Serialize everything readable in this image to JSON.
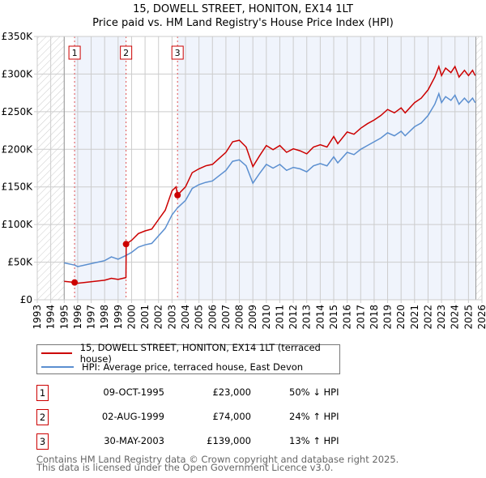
{
  "chart_data": {
    "type": "line",
    "title": "15, DOWELL STREET, HONITON, EX14 1LT",
    "subtitle": "Price paid vs. HM Land Registry's House Price Index (HPI)",
    "xlim": [
      1993,
      2026
    ],
    "ylim": [
      0,
      350000
    ],
    "x_ticks": [
      "1993",
      "1994",
      "1995",
      "1996",
      "1997",
      "1998",
      "1999",
      "2000",
      "2001",
      "2002",
      "2003",
      "2004",
      "2005",
      "2006",
      "2007",
      "2008",
      "2009",
      "2010",
      "2011",
      "2012",
      "2013",
      "2014",
      "2015",
      "2016",
      "2017",
      "2018",
      "2019",
      "2020",
      "2021",
      "2022",
      "2023",
      "2024",
      "2025",
      "2026"
    ],
    "y_ticks": [
      {
        "v": 0,
        "label": "£0"
      },
      {
        "v": 50000,
        "label": "£50K"
      },
      {
        "v": 100000,
        "label": "£100K"
      },
      {
        "v": 150000,
        "label": "£150K"
      },
      {
        "v": 200000,
        "label": "£200K"
      },
      {
        "v": 250000,
        "label": "£250K"
      },
      {
        "v": 300000,
        "label": "£300K"
      },
      {
        "v": 350000,
        "label": "£350K"
      }
    ],
    "grid": true,
    "data_start": 1995,
    "data_end": 2025.55,
    "series": [
      {
        "name": "15, DOWELL STREET, HONITON, EX14 1LT (terraced house)",
        "color": "#cc0000",
        "x": [
          1995,
          1995.8,
          1996,
          1997,
          1998,
          1998.5,
          1999,
          1999.58,
          1999.6,
          2000,
          2000.5,
          2001,
          2001.5,
          2002,
          2002.5,
          2003,
          2003.3,
          2003.4,
          2004,
          2004.5,
          2005,
          2005.5,
          2006,
          2006.5,
          2007,
          2007.5,
          2008,
          2008.5,
          2009,
          2009.5,
          2010,
          2010.5,
          2011,
          2011.5,
          2012,
          2012.5,
          2013,
          2013.5,
          2014,
          2014.5,
          2015,
          2015.3,
          2016,
          2016.5,
          2017,
          2017.5,
          2018,
          2018.5,
          2019,
          2019.5,
          2020,
          2020.3,
          2021,
          2021.5,
          2022,
          2022.5,
          2022.8,
          2023,
          2023.3,
          2023.7,
          2024,
          2024.3,
          2024.7,
          2025,
          2025.3,
          2025.5
        ],
        "y": [
          24.5,
          23,
          22,
          24,
          26,
          28.5,
          27,
          29.5,
          74,
          79,
          88,
          91.5,
          94,
          106.6,
          119,
          145,
          150,
          139,
          150,
          169,
          174,
          178,
          180,
          188,
          196,
          210,
          212,
          203,
          177,
          191.5,
          205,
          199.5,
          205,
          196,
          200.6,
          198,
          194,
          203,
          206,
          203,
          217,
          207.5,
          223,
          220,
          228,
          234,
          239,
          245,
          253,
          248.5,
          255,
          248.5,
          262,
          268,
          279,
          296,
          310,
          298,
          308,
          302,
          310,
          296,
          305,
          298,
          305,
          298
        ]
      },
      {
        "name": "HPI: Average price, terraced house, East Devon",
        "color": "#5b8fd0",
        "x": [
          1995,
          1995.8,
          1996,
          1997,
          1998,
          1998.5,
          1999,
          1999.6,
          2000,
          2000.5,
          2001,
          2001.5,
          2002,
          2002.5,
          2003,
          2003.4,
          2004,
          2004.5,
          2005,
          2005.5,
          2006,
          2006.5,
          2007,
          2007.5,
          2008,
          2008.5,
          2009,
          2009.5,
          2010,
          2010.5,
          2011,
          2011.5,
          2012,
          2012.5,
          2013,
          2013.5,
          2014,
          2014.5,
          2015,
          2015.3,
          2016,
          2016.5,
          2017,
          2017.5,
          2018,
          2018.5,
          2019,
          2019.5,
          2020,
          2020.3,
          2021,
          2021.5,
          2022,
          2022.5,
          2022.8,
          2023,
          2023.3,
          2023.7,
          2024,
          2024.3,
          2024.7,
          2025,
          2025.3,
          2025.5
        ],
        "y": [
          49,
          46,
          44,
          48,
          52,
          57,
          54,
          59,
          63,
          70,
          73,
          75,
          85,
          95,
          113,
          122,
          132,
          148,
          153,
          156,
          158,
          165,
          172,
          184,
          186,
          178,
          155,
          168,
          180,
          175,
          180,
          172,
          176,
          174,
          170,
          178,
          181,
          178,
          190,
          182,
          196,
          193,
          200,
          205,
          210,
          215,
          222,
          218,
          224,
          218,
          230,
          235,
          245,
          260,
          274,
          262,
          270,
          265,
          272,
          260,
          268,
          262,
          268,
          262
        ]
      }
    ],
    "y_units_note": "series y values in thousands of GBP",
    "sales": [
      {
        "label": "1",
        "x": 1995.77,
        "price": 23000,
        "date": "09-OCT-1995",
        "price_text": "£23,000",
        "hpi_text": "50% ↓ HPI"
      },
      {
        "label": "2",
        "x": 1999.59,
        "price": 74000,
        "date": "02-AUG-1999",
        "price_text": "£74,000",
        "hpi_text": "24% ↑ HPI"
      },
      {
        "label": "3",
        "x": 2003.41,
        "price": 139000,
        "date": "30-MAY-2003",
        "price_text": "£139,000",
        "hpi_text": "13% ↑ HPI"
      }
    ],
    "legend": [
      "15, DOWELL STREET, HONITON, EX14 1LT (terraced house)",
      "HPI: Average price, terraced house, East Devon"
    ]
  },
  "footer": [
    "Contains HM Land Registry data © Crown copyright and database right 2025.",
    "This data is licensed under the Open Government Licence v3.0."
  ]
}
